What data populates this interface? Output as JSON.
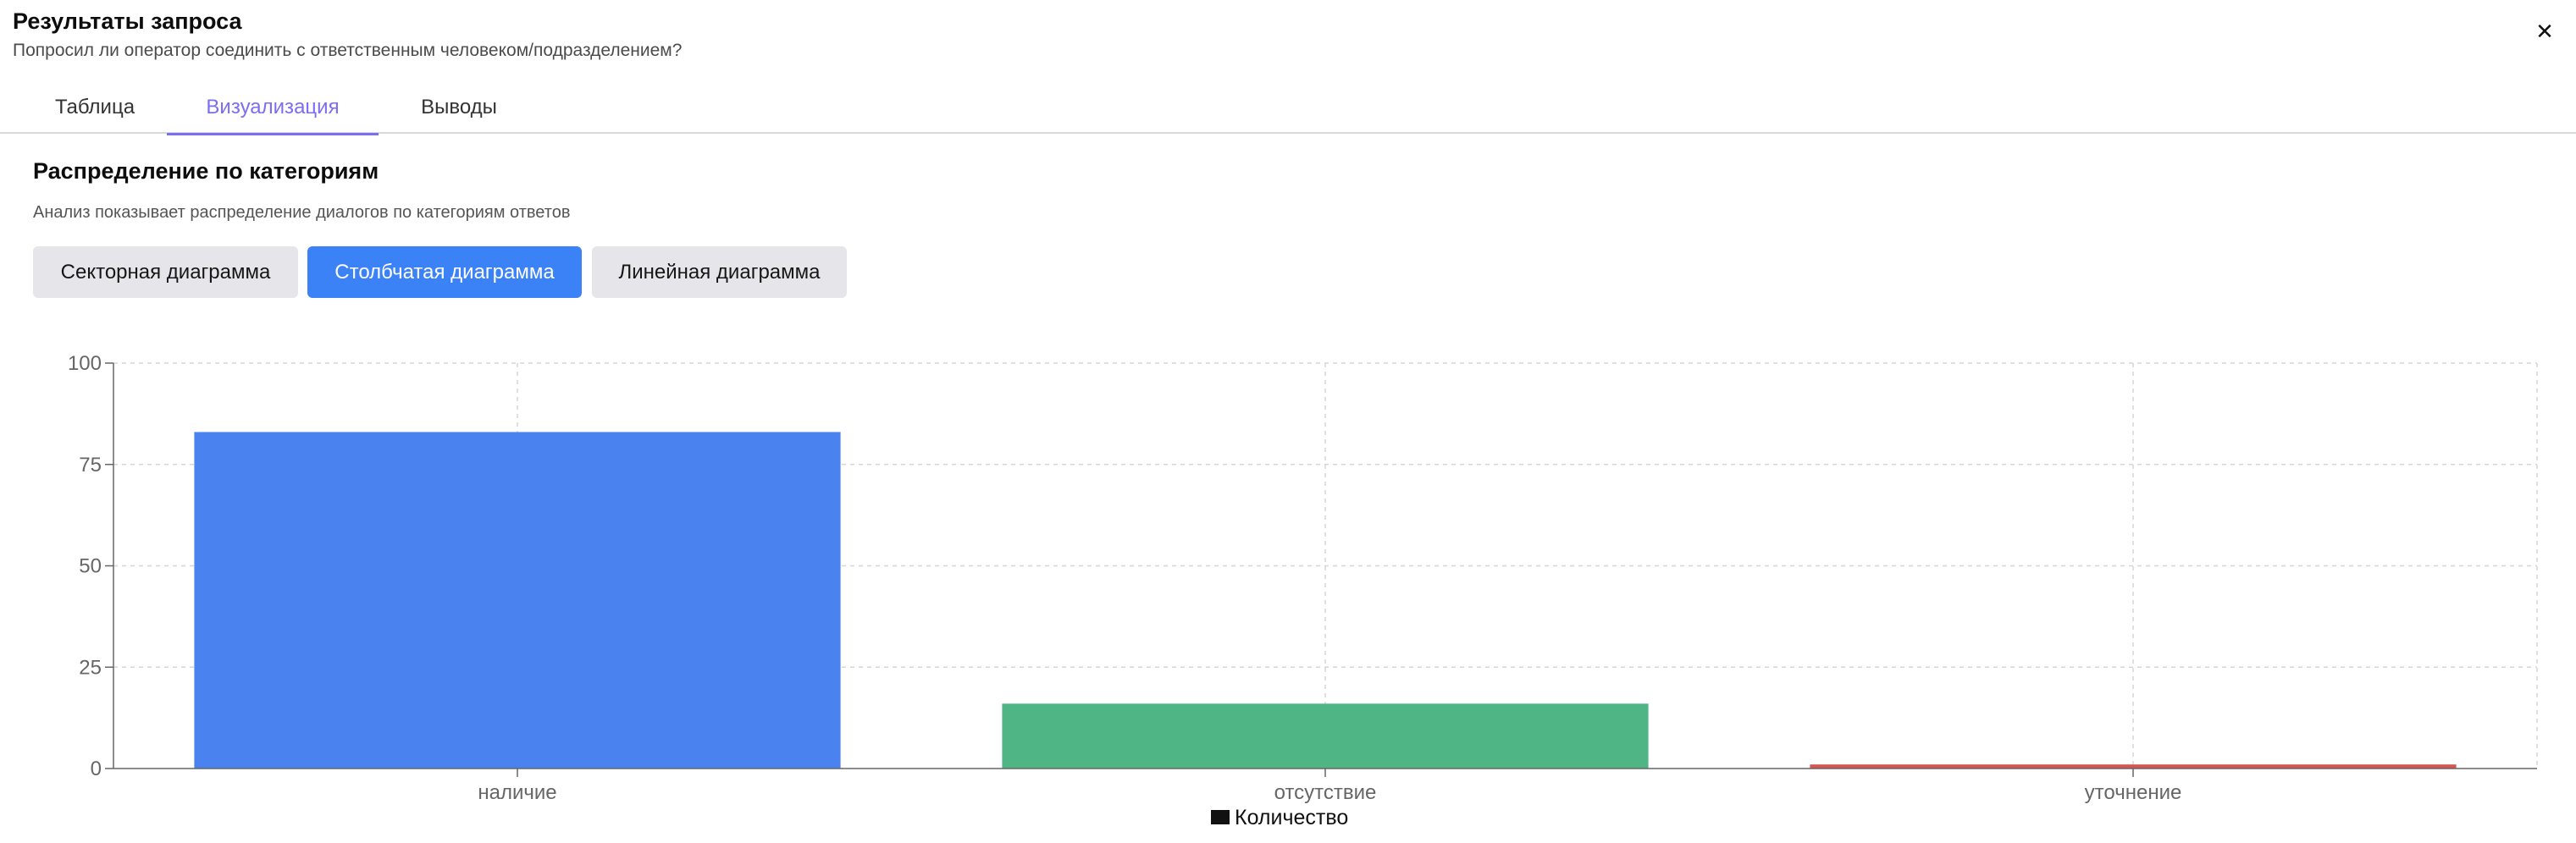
{
  "header": {
    "title": "Результаты запроса",
    "subtitle": "Попросил ли оператор соединить с ответственным человеком/подразделением?",
    "close_label": "✕"
  },
  "tabs": [
    {
      "label": "Таблица",
      "active": false
    },
    {
      "label": "Визуализация",
      "active": true
    },
    {
      "label": "Выводы",
      "active": false
    }
  ],
  "section": {
    "title": "Распределение по категориям",
    "description": "Анализ показывает распределение диалогов по категориям ответов"
  },
  "chart_buttons": [
    {
      "label": "Секторная диаграмма",
      "active": false
    },
    {
      "label": "Столбчатая диаграмма",
      "active": true
    },
    {
      "label": "Линейная диаграмма",
      "active": false
    }
  ],
  "colors": {
    "accent": "#7b6ef0",
    "button_active": "#3b82f6",
    "bar_1": "#4a83ef",
    "bar_2": "#4fb585",
    "bar_3": "#d9534f"
  },
  "chart_data": {
    "type": "bar",
    "categories": [
      "наличие",
      "отсутствие",
      "уточнение"
    ],
    "series": [
      {
        "name": "Количество",
        "values": [
          83,
          16,
          1
        ],
        "colors": [
          "#4a83ef",
          "#4fb585",
          "#d9534f"
        ]
      }
    ],
    "yticks": [
      0,
      25,
      50,
      75,
      100
    ],
    "ylim": [
      0,
      100
    ],
    "grid": true,
    "legend": "bottom-center"
  }
}
